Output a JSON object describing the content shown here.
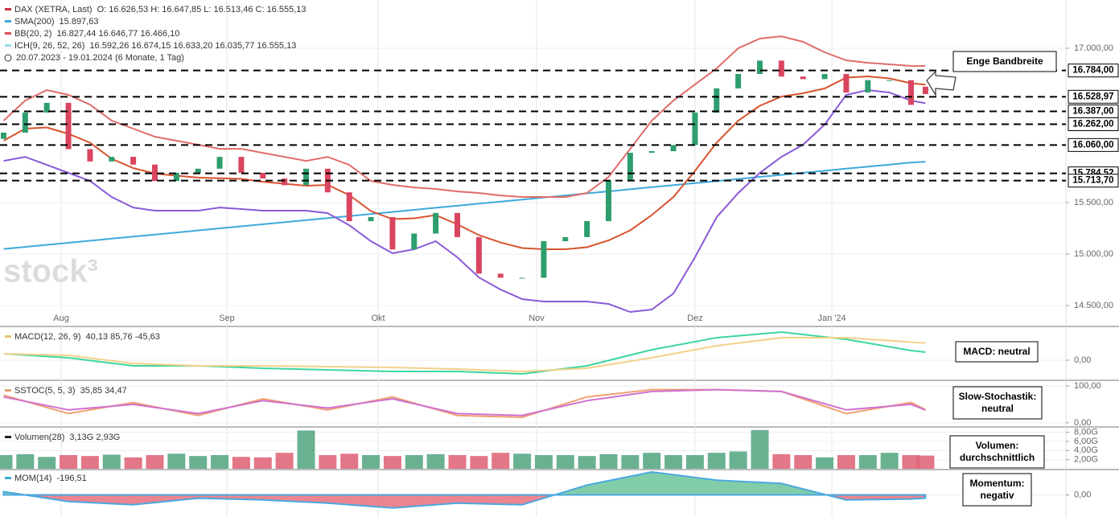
{
  "chart_data": [
    {
      "type": "candlestick",
      "watermark": "stock³",
      "date_range": "20.07.2023 - 19.01.2024 (6 Monate, 1 Tag)",
      "legend": [
        {
          "name": "DAX (XETRA, Last)",
          "text": "O: 16.626,53  H: 16.647,85  L: 16.513,46  C: 16.555,13",
          "color": "#c0304a"
        },
        {
          "name": "SMA(200)",
          "text": "15.897,63",
          "color": "#3fa9dc"
        },
        {
          "name": "BB(20, 2)",
          "text": "16.827,44  16.646,77  16.466,10",
          "color": "#d9534f"
        },
        {
          "name": "ICH(9, 26, 52, 26)",
          "text": "16.592,26  16.674,15  16.633,20  16.035,77  16.555,13",
          "color": "#9fd9ea"
        }
      ],
      "annotation": [
        "Enge Bandbreite"
      ],
      "xlim": [
        -0.5,
        147.5
      ],
      "xticks": [
        {
          "value": 8,
          "label": "Aug"
        },
        {
          "value": 31,
          "label": "Sep"
        },
        {
          "value": 52,
          "label": "Okt"
        },
        {
          "value": 74,
          "label": "Nov"
        },
        {
          "value": 96,
          "label": "Dez"
        },
        {
          "value": 115,
          "label": "Jan '24"
        }
      ],
      "ylim": [
        14305,
        17469
      ],
      "yticks": [
        {
          "value": 14500,
          "label": "14.500,00"
        },
        {
          "value": 15000,
          "label": "15.000,00"
        },
        {
          "value": 15500,
          "label": "15.500,00"
        },
        {
          "value": 17000,
          "label": "17.000,00"
        }
      ],
      "levels": [
        {
          "value": 16784,
          "label": "16.784,00"
        },
        {
          "value": 16528.97,
          "label": "16.528,97"
        },
        {
          "value": 16387,
          "label": "16.387,00"
        },
        {
          "value": 16262,
          "label": "16.262,00"
        },
        {
          "value": 16060,
          "label": "16.060,00"
        },
        {
          "value": 15784.52,
          "label": "15.784,52"
        },
        {
          "value": 15713.7,
          "label": "15.713,70"
        }
      ],
      "up_color": "#2e9e6e",
      "down_color": "#d9455f",
      "x": [
        0,
        3,
        6,
        9,
        12,
        15,
        18,
        21,
        24,
        27,
        30,
        33,
        36,
        39,
        42,
        45,
        48,
        51,
        54,
        57,
        60,
        63,
        66,
        69,
        72,
        75,
        78,
        81,
        84,
        87,
        90,
        93,
        96,
        99,
        102,
        105,
        108,
        111,
        114,
        117,
        120,
        123,
        126,
        128
      ],
      "open": [
        16120,
        16180,
        16375,
        16470,
        16020,
        15900,
        15945,
        15870,
        15710,
        15790,
        15830,
        15945,
        15790,
        15735,
        15670,
        15830,
        15600,
        15320,
        15360,
        15045,
        15200,
        15400,
        15165,
        14810,
        14770,
        14770,
        15125,
        15165,
        15320,
        15710,
        15985,
        16000,
        16060,
        16375,
        16610,
        16750,
        16880,
        16725,
        16700,
        16750,
        16570,
        16690,
        16690,
        16626.53
      ],
      "close": [
        16180,
        16375,
        16470,
        16020,
        15900,
        15945,
        15870,
        15710,
        15790,
        15830,
        15945,
        15790,
        15735,
        15670,
        15830,
        15600,
        15320,
        15360,
        15045,
        15200,
        15400,
        15165,
        14810,
        14770,
        14770,
        15125,
        15165,
        15320,
        15710,
        15985,
        16000,
        16060,
        16375,
        16610,
        16750,
        16880,
        16725,
        16700,
        16750,
        16570,
        16690,
        16690,
        16450,
        16555.13
      ],
      "series": [
        {
          "name": "SMA(200)",
          "color": "#3fa9dc",
          "values": [
            15050,
            15070,
            15090,
            15110,
            15130,
            15150,
            15170,
            15190,
            15210,
            15230,
            15250,
            15270,
            15290,
            15310,
            15330,
            15350,
            15370,
            15390,
            15410,
            15430,
            15450,
            15470,
            15490,
            15510,
            15530,
            15550,
            15570,
            15590,
            15610,
            15630,
            15650,
            15670,
            15690,
            15710,
            15730,
            15750,
            15770,
            15790,
            15810,
            15830,
            15850,
            15870,
            15890,
            15897.63
          ]
        },
        {
          "name": "BB oben",
          "color": "#e06b6b",
          "values": [
            16297,
            16492,
            16594,
            16547,
            16453,
            16297,
            16219,
            16141,
            16102,
            16063,
            16023,
            16023,
            15984,
            15945,
            15906,
            15945,
            15867,
            15711,
            15672,
            15648,
            15633,
            15609,
            15594,
            15570,
            15555,
            15555,
            15555,
            15594,
            15750,
            16023,
            16297,
            16492,
            16648,
            16805,
            17000,
            17094,
            17117,
            17063,
            16961,
            16883,
            16859,
            16844,
            16828,
            16827.44
          ]
        },
        {
          "name": "BB Mitte",
          "color": "#d9532f",
          "values": [
            16102,
            16219,
            16231,
            16168,
            16082,
            15926,
            15836,
            15782,
            15762,
            15743,
            15738,
            15731,
            15703,
            15684,
            15664,
            15672,
            15574,
            15418,
            15340,
            15348,
            15379,
            15289,
            15184,
            15113,
            15059,
            15047,
            15047,
            15067,
            15133,
            15231,
            15379,
            15555,
            15809,
            16082,
            16297,
            16442,
            16531,
            16563,
            16610,
            16715,
            16727,
            16707,
            16660,
            16646.77
          ]
        },
        {
          "name": "BB unten",
          "color": "#8a5ad6",
          "values": [
            15906,
            15945,
            15867,
            15789,
            15711,
            15555,
            15453,
            15422,
            15422,
            15422,
            15453,
            15438,
            15422,
            15422,
            15422,
            15398,
            15281,
            15125,
            15008,
            15047,
            15125,
            14969,
            14773,
            14656,
            14563,
            14539,
            14539,
            14539,
            14516,
            14438,
            14461,
            14617,
            14969,
            15359,
            15594,
            15789,
            15945,
            16063,
            16258,
            16547,
            16594,
            16570,
            16492,
            16466.1
          ]
        }
      ]
    },
    {
      "type": "line",
      "legend": [
        {
          "name": "MACD(12, 26, 9)",
          "text": "40,13  85,76  -45,63",
          "color": "#e8c27a"
        }
      ],
      "annotation": [
        "MACD: neutral"
      ],
      "ylim": [
        -96,
        164
      ],
      "yticks": [
        {
          "value": 0,
          "label": "0,00"
        }
      ],
      "x": [
        0,
        9,
        18,
        27,
        36,
        45,
        54,
        63,
        72,
        81,
        90,
        99,
        108,
        117,
        126,
        128
      ],
      "series": [
        {
          "name": "MACD",
          "color": "#3dd6a0",
          "values": [
            32,
            12,
            -28,
            -28,
            -40,
            -48,
            -56,
            -56,
            -68,
            -28,
            52,
            112,
            140,
            104,
            48,
            40.13
          ]
        },
        {
          "name": "Signal",
          "color": "#f5d08a",
          "values": [
            32,
            24,
            -16,
            -28,
            -28,
            -32,
            -36,
            -44,
            -56,
            -40,
            12,
            72,
            112,
            112,
            90,
            85.76
          ]
        }
      ]
    },
    {
      "type": "line",
      "legend": [
        {
          "name": "SSTOC(5, 5, 3)",
          "text": "35,85  34,47",
          "color": "#f0a070"
        }
      ],
      "annotation": [
        "Slow-Stochastik:",
        "neutral"
      ],
      "ylim": [
        -9,
        113
      ],
      "yticks": [
        {
          "value": 0,
          "label": "0,00"
        },
        {
          "value": 100,
          "label": "100,00"
        }
      ],
      "x": [
        0,
        9,
        18,
        27,
        36,
        45,
        54,
        63,
        72,
        81,
        90,
        99,
        108,
        117,
        126,
        128
      ],
      "series": [
        {
          "name": "%K",
          "color": "#f0a070",
          "values": [
            75,
            25,
            55,
            20,
            65,
            35,
            70,
            20,
            15,
            70,
            90,
            90,
            85,
            25,
            55,
            35.85
          ]
        },
        {
          "name": "%D",
          "color": "#d070d0",
          "values": [
            70,
            35,
            50,
            25,
            60,
            40,
            65,
            25,
            20,
            60,
            85,
            90,
            85,
            35,
            50,
            34.47
          ]
        }
      ]
    },
    {
      "type": "bar",
      "legend": [
        {
          "name": "Volumen(28)",
          "text": "3,13G  2,93G",
          "color": "#222222"
        }
      ],
      "annotation": [
        "Volumen:",
        "durchschnittlich"
      ],
      "ylim": [
        0,
        9
      ],
      "yticks": [
        {
          "value": 2,
          "label": "2,00G"
        },
        {
          "value": 4,
          "label": "4,00G"
        },
        {
          "value": 6,
          "label": "6,00G"
        },
        {
          "value": 8,
          "label": "8,00G"
        }
      ],
      "values": [
        3.0,
        3.2,
        2.6,
        3.0,
        2.8,
        3.1,
        2.5,
        3.0,
        3.3,
        2.8,
        3.0,
        2.6,
        2.5,
        3.5,
        8.4,
        3.0,
        3.3,
        3.0,
        2.8,
        3.0,
        3.2,
        3.0,
        2.8,
        3.5,
        3.3,
        3.0,
        3.0,
        2.8,
        3.2,
        3.0,
        3.5,
        3.0,
        3.0,
        3.5,
        3.8,
        8.5,
        3.2,
        3.0,
        2.5,
        3.0,
        3.0,
        3.5,
        3.0,
        2.9
      ]
    },
    {
      "type": "area",
      "legend": [
        {
          "name": "MOM(14)",
          "text": "-196,51",
          "color": "#3fa9dc"
        }
      ],
      "annotation": [
        "Momentum:",
        "negativ"
      ],
      "ylim": [
        -1250,
        1500
      ],
      "yticks": [
        {
          "value": 0,
          "label": "0,00"
        }
      ],
      "x": [
        0,
        9,
        18,
        27,
        36,
        45,
        54,
        63,
        72,
        81,
        90,
        99,
        108,
        117,
        126,
        128
      ],
      "color": "#4aa8e0",
      "positive_color": "#6cc49a",
      "negative_color": "#e8707e",
      "values": [
        200,
        -400,
        -600,
        -200,
        -300,
        -500,
        -800,
        -500,
        -600,
        600,
        1400,
        900,
        700,
        -300,
        -250,
        -196.51
      ]
    }
  ]
}
